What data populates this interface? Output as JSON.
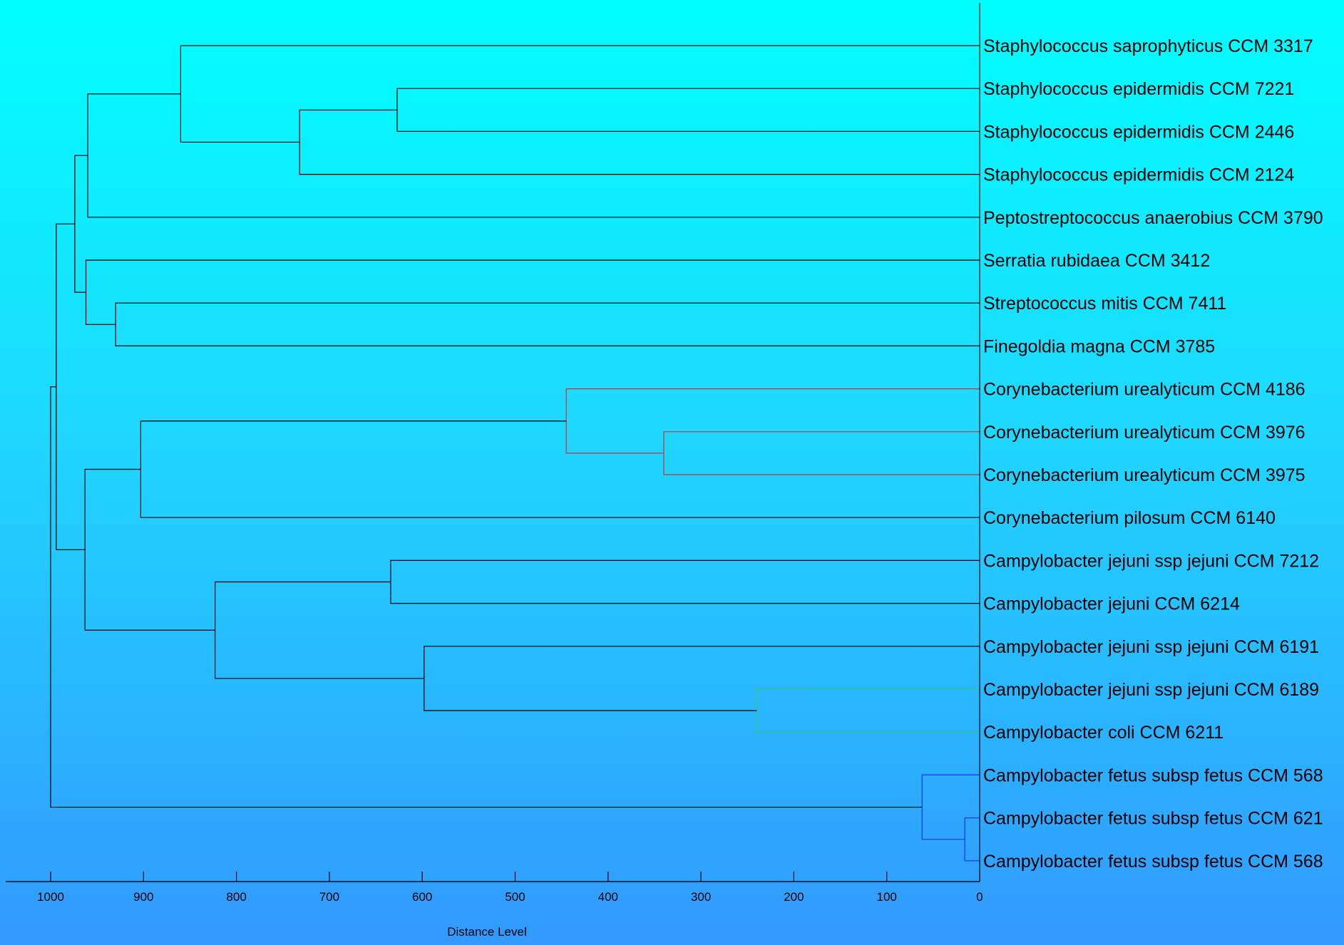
{
  "chart_data": {
    "type": "dendrogram",
    "orientation": "horizontal",
    "x_axis": {
      "label": "Distance Level",
      "min": 0,
      "max": 1000,
      "reversed": true,
      "ticks": [
        1000,
        900,
        800,
        700,
        600,
        500,
        400,
        300,
        200,
        100,
        0
      ]
    },
    "leaves": [
      "Staphylococcus saprophyticus CCM 3317",
      "Staphylococcus epidermidis CCM 7221",
      "Staphylococcus epidermidis CCM 2446",
      "Staphylococcus epidermidis CCM 2124",
      "Peptostreptococcus anaerobius CCM 3790",
      "Serratia rubidaea CCM 3412",
      "Streptococcus mitis CCM 7411",
      "Finegoldia magna CCM 3785",
      "Corynebacterium urealyticum CCM 4186",
      "Corynebacterium urealyticum CCM 3976",
      "Corynebacterium urealyticum CCM 3975",
      "Corynebacterium pilosum CCM 6140",
      "Campylobacter jejuni ssp jejuni CCM 7212",
      "Campylobacter jejuni CCM 6214",
      "Campylobacter jejuni ssp jejuni CCM 6191",
      "Campylobacter jejuni ssp jejuni CCM 6189",
      "Campylobacter coli CCM 6211",
      "Campylobacter fetus subsp fetus CCM 568",
      "Campylobacter fetus subsp fetus CCM 621",
      "Campylobacter fetus subsp fetus CCM 568"
    ],
    "merges": [
      {
        "a": "L1",
        "b": "L2",
        "distance": 627,
        "color": "#000000"
      },
      {
        "a": "M0",
        "b": "L3",
        "distance": 732,
        "color": "#000000"
      },
      {
        "a": "L0",
        "b": "M1",
        "distance": 860,
        "color": "#000000"
      },
      {
        "a": "M2",
        "b": "L4",
        "distance": 960,
        "color": "#000000"
      },
      {
        "a": "L6",
        "b": "L7",
        "distance": 930,
        "color": "#000000"
      },
      {
        "a": "L5",
        "b": "M4",
        "distance": 962,
        "color": "#000000"
      },
      {
        "a": "M3",
        "b": "M5",
        "distance": 974,
        "color": "#000000"
      },
      {
        "a": "L9",
        "b": "L10",
        "distance": 340,
        "color": "#cc3333"
      },
      {
        "a": "L8",
        "b": "M7",
        "distance": 445,
        "color": "#cc3333"
      },
      {
        "a": "M8",
        "b": "L11",
        "distance": 903,
        "color": "#000000"
      },
      {
        "a": "L12",
        "b": "L13",
        "distance": 634,
        "color": "#000000"
      },
      {
        "a": "L15",
        "b": "L16",
        "distance": 240,
        "color": "#33cc66"
      },
      {
        "a": "L14",
        "b": "M11",
        "distance": 598,
        "color": "#000000"
      },
      {
        "a": "M10",
        "b": "M12",
        "distance": 823,
        "color": "#000000"
      },
      {
        "a": "M9",
        "b": "M13",
        "distance": 963,
        "color": "#000000"
      },
      {
        "a": "M6",
        "b": "M14",
        "distance": 994,
        "color": "#000000"
      },
      {
        "a": "L18",
        "b": "L19",
        "distance": 16,
        "color": "#0033ff"
      },
      {
        "a": "L17",
        "b": "M16",
        "distance": 62,
        "color": "#0033ff"
      },
      {
        "a": "M15",
        "b": "M17",
        "distance": 1000,
        "color": "#000000"
      }
    ]
  }
}
